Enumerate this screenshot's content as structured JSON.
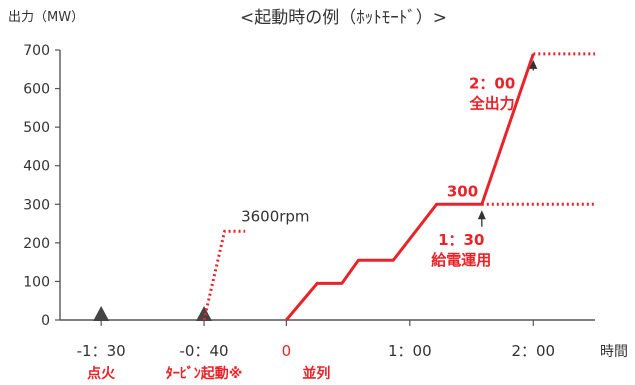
{
  "chart_data": {
    "type": "line",
    "title": "<起動時の例（ﾎｯﾄﾓｰﾄﾞ）>",
    "ylabel": "出力（MW）",
    "xlabel": "時間",
    "ylim": [
      0,
      700
    ],
    "xlim_minutes": [
      -110,
      150
    ],
    "y_ticks": [
      "0",
      "100",
      "200",
      "300",
      "400",
      "500",
      "600",
      "700"
    ],
    "x_ticks": [
      {
        "minutes": -90,
        "label": "-1：30"
      },
      {
        "minutes": -40,
        "label": "-0：40"
      },
      {
        "minutes": 0,
        "label": "0"
      },
      {
        "minutes": 60,
        "label": "1：00"
      },
      {
        "minutes": 120,
        "label": "2：00"
      }
    ],
    "series": [
      {
        "style": "solid",
        "points": [
          [
            0,
            0
          ],
          [
            15,
            95
          ],
          [
            27,
            95
          ],
          [
            35,
            155
          ],
          [
            52,
            155
          ],
          [
            73,
            300
          ],
          [
            95,
            300
          ],
          [
            120,
            690
          ]
        ]
      },
      {
        "style": "dotted",
        "points": [
          [
            -40,
            0
          ],
          [
            -30,
            230
          ],
          [
            -20,
            230
          ]
        ]
      },
      {
        "style": "dotted",
        "points": [
          [
            95,
            300
          ],
          [
            150,
            300
          ]
        ]
      },
      {
        "style": "dotted",
        "points": [
          [
            120,
            690
          ],
          [
            150,
            690
          ]
        ]
      }
    ],
    "events": [
      {
        "minutes": -90,
        "marker": "triangle",
        "label": "点火"
      },
      {
        "minutes": -40,
        "marker": "triangle",
        "label": "ﾀｰﾋﾞﾝ起動※"
      },
      {
        "minutes": 0,
        "label": "並列"
      }
    ],
    "annotations": [
      {
        "text": "3600rpm",
        "x_min": -22,
        "y": 255,
        "color": "dark"
      },
      {
        "text": "300",
        "x_min": 78,
        "y": 320,
        "color": "red"
      },
      {
        "lines": [
          "1：30",
          "給電運用"
        ],
        "x_min": 85,
        "y": 195,
        "color": "red",
        "arrow_to": [
          95,
          300
        ]
      },
      {
        "lines": [
          "2：00",
          "全出力"
        ],
        "x_min": 100,
        "y": 600,
        "color": "red",
        "arrow_to": [
          120,
          690
        ]
      }
    ],
    "colors": {
      "line": "#e8242a",
      "axis": "#555555",
      "text": "#333333",
      "accent_text": "#e8242a"
    }
  }
}
